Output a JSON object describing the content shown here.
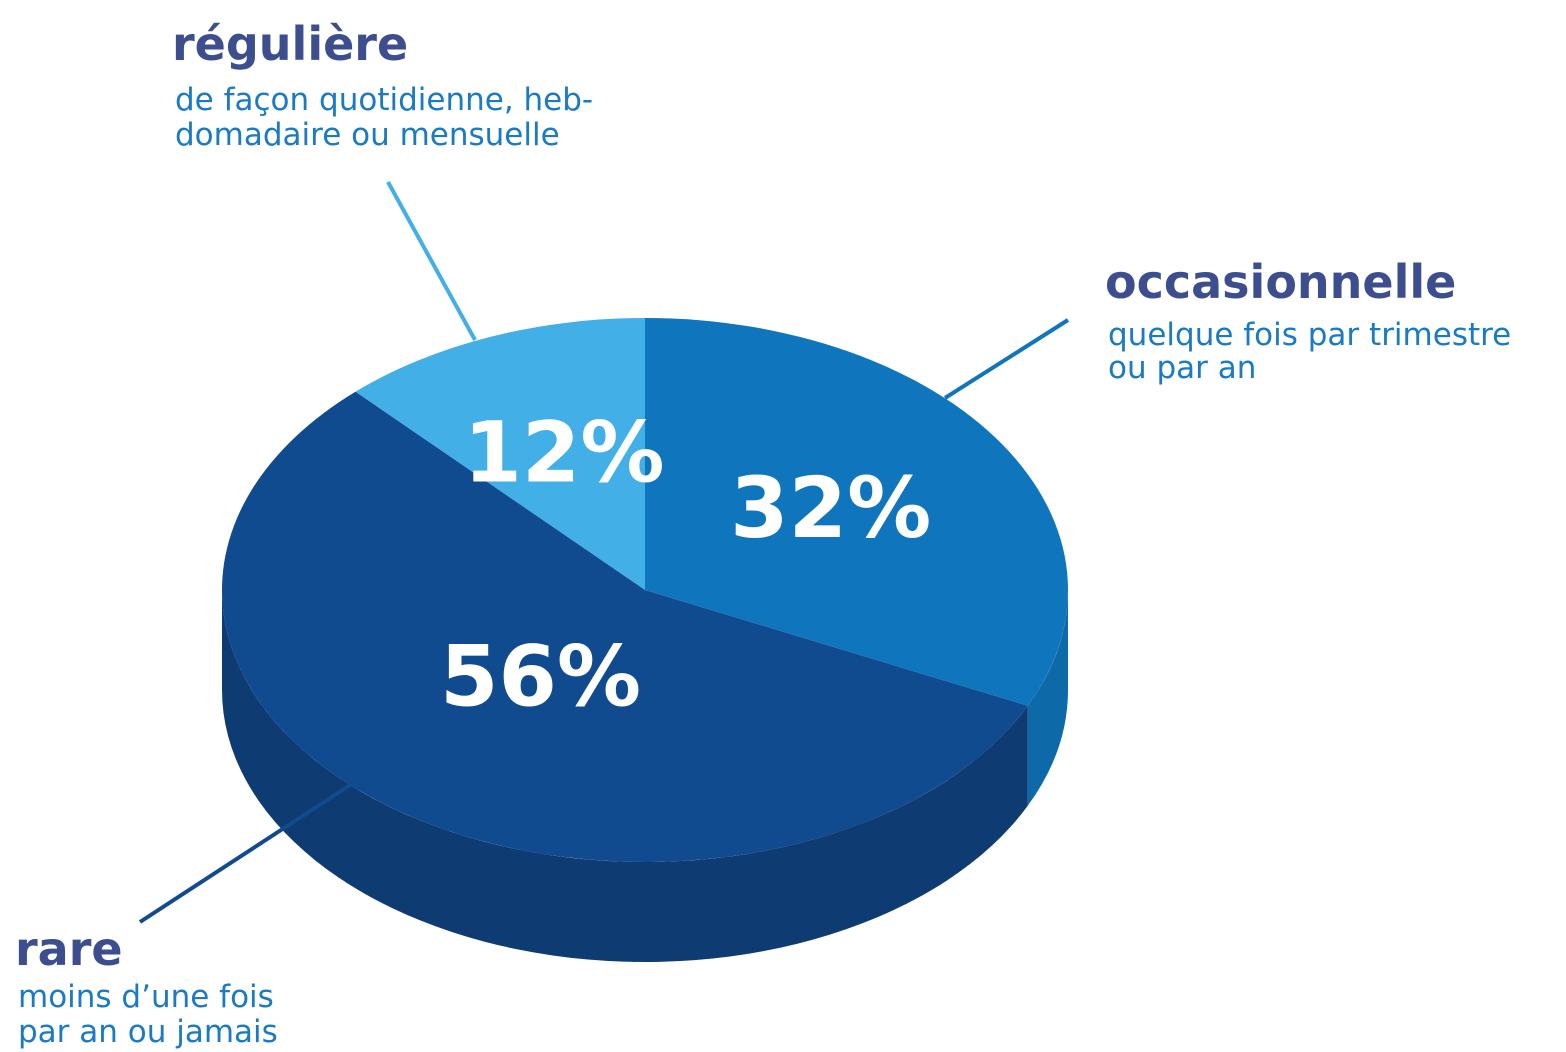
{
  "chart_data": {
    "type": "pie",
    "categories": [
      "régulière",
      "occasionnelle",
      "rare"
    ],
    "descriptions": [
      [
        "de façon quotidienne, heb-",
        "domadaire ou mensuelle"
      ],
      [
        "quelque fois par trimestre",
        "ou par an"
      ],
      [
        "moins d’une fois",
        "par an ou jamais"
      ]
    ],
    "values": [
      12,
      32,
      56
    ],
    "value_labels": [
      "12%",
      "32%",
      "56%"
    ],
    "colors": [
      "#42b0e6",
      "#0f75bc",
      "#114b8f"
    ]
  }
}
